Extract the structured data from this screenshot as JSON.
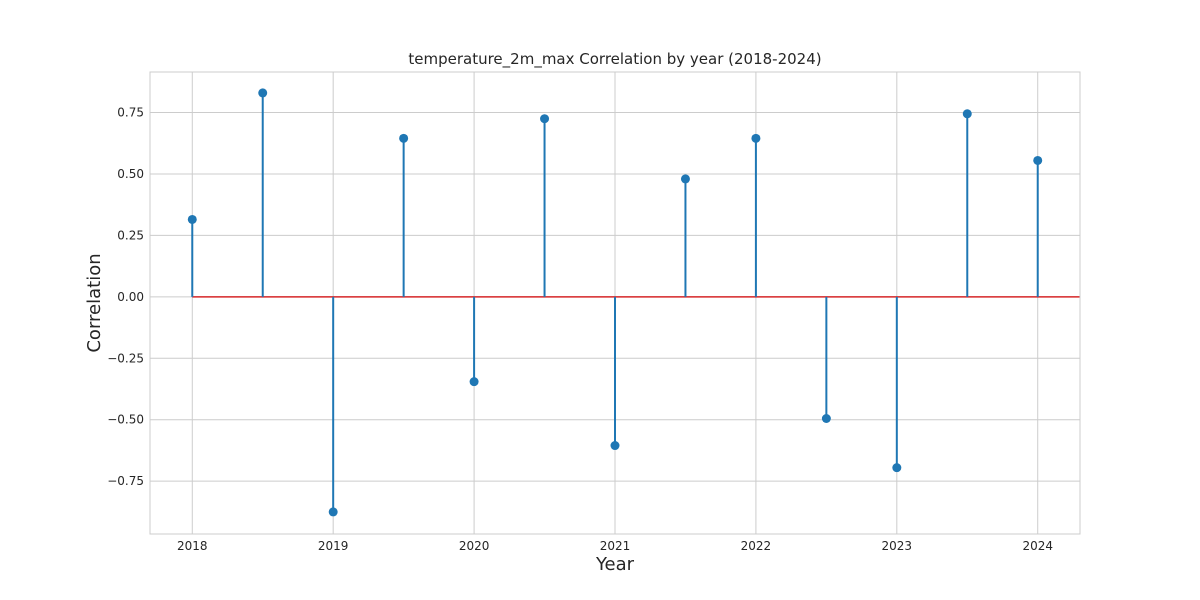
{
  "chart_data": {
    "type": "stem",
    "title": "temperature_2m_max Correlation by year (2018-2024)",
    "xlabel": "Year",
    "ylabel": "Correlation",
    "xlim": [
      2017.7,
      2024.3
    ],
    "ylim": [
      -0.965,
      0.915
    ],
    "xticks": [
      2018,
      2019,
      2020,
      2021,
      2022,
      2023,
      2024
    ],
    "yticks": [
      -0.75,
      -0.5,
      -0.25,
      0.0,
      0.25,
      0.5,
      0.75
    ],
    "ytick_labels": [
      "−0.75",
      "−0.50",
      "−0.25",
      "0.00",
      "0.25",
      "0.50",
      "0.75"
    ],
    "baseline": 0.0,
    "grid": true,
    "series": [
      {
        "x": [
          2018.0,
          2018.5,
          2019.0,
          2019.5,
          2020.0,
          2020.5,
          2021.0,
          2021.5,
          2022.0,
          2022.5,
          2023.0,
          2023.5,
          2024.0
        ],
        "y": [
          0.315,
          0.83,
          -0.875,
          0.645,
          -0.345,
          0.725,
          -0.605,
          0.48,
          0.645,
          -0.495,
          -0.695,
          0.745,
          0.555
        ],
        "color": "#1f77b4"
      }
    ],
    "baseline_color": "#d62728"
  }
}
